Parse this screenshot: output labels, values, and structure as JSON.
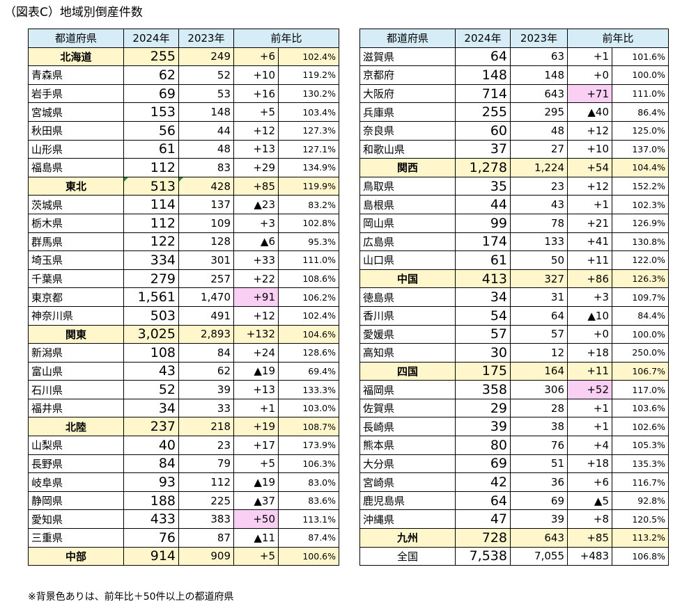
{
  "title": "（図表C）地域別倒産件数",
  "footnote": "※背景色ありは、前年比＋50件以上の都道府県",
  "headers": {
    "pref": "都道府県",
    "y2024": "2024年",
    "y2023": "2023年",
    "yoy": "前年比"
  },
  "left_rows": [
    {
      "name": "北海道",
      "y2024": "255",
      "y2023": "249",
      "diff": "+6",
      "pct": "102.4%",
      "kind": "sub"
    },
    {
      "name": "青森県",
      "y2024": "62",
      "y2023": "52",
      "diff": "+10",
      "pct": "119.2%"
    },
    {
      "name": "岩手県",
      "y2024": "69",
      "y2023": "53",
      "diff": "+16",
      "pct": "130.2%"
    },
    {
      "name": "宮城県",
      "y2024": "153",
      "y2023": "148",
      "diff": "+5",
      "pct": "103.4%"
    },
    {
      "name": "秋田県",
      "y2024": "56",
      "y2023": "44",
      "diff": "+12",
      "pct": "127.3%"
    },
    {
      "name": "山形県",
      "y2024": "61",
      "y2023": "48",
      "diff": "+13",
      "pct": "127.1%"
    },
    {
      "name": "福島県",
      "y2024": "112",
      "y2023": "83",
      "diff": "+29",
      "pct": "134.9%"
    },
    {
      "name": "東北",
      "y2024": "513",
      "y2023": "428",
      "diff": "+85",
      "pct": "119.9%",
      "kind": "sub",
      "mark": true
    },
    {
      "name": "茨城県",
      "y2024": "114",
      "y2023": "137",
      "diff": "▲23",
      "pct": "83.2%"
    },
    {
      "name": "栃木県",
      "y2024": "112",
      "y2023": "109",
      "diff": "+3",
      "pct": "102.8%"
    },
    {
      "name": "群馬県",
      "y2024": "122",
      "y2023": "128",
      "diff": "▲6",
      "pct": "95.3%"
    },
    {
      "name": "埼玉県",
      "y2024": "334",
      "y2023": "301",
      "diff": "+33",
      "pct": "111.0%"
    },
    {
      "name": "千葉県",
      "y2024": "279",
      "y2023": "257",
      "diff": "+22",
      "pct": "108.6%"
    },
    {
      "name": "東京都",
      "y2024": "1,561",
      "y2023": "1,470",
      "diff": "+91",
      "pct": "106.2%",
      "hl": true
    },
    {
      "name": "神奈川県",
      "y2024": "503",
      "y2023": "491",
      "diff": "+12",
      "pct": "102.4%"
    },
    {
      "name": "関東",
      "y2024": "3,025",
      "y2023": "2,893",
      "diff": "+132",
      "pct": "104.6%",
      "kind": "sub"
    },
    {
      "name": "新潟県",
      "y2024": "108",
      "y2023": "84",
      "diff": "+24",
      "pct": "128.6%"
    },
    {
      "name": "富山県",
      "y2024": "43",
      "y2023": "62",
      "diff": "▲19",
      "pct": "69.4%"
    },
    {
      "name": "石川県",
      "y2024": "52",
      "y2023": "39",
      "diff": "+13",
      "pct": "133.3%"
    },
    {
      "name": "福井県",
      "y2024": "34",
      "y2023": "33",
      "diff": "+1",
      "pct": "103.0%"
    },
    {
      "name": "北陸",
      "y2024": "237",
      "y2023": "218",
      "diff": "+19",
      "pct": "108.7%",
      "kind": "sub"
    },
    {
      "name": "山梨県",
      "y2024": "40",
      "y2023": "23",
      "diff": "+17",
      "pct": "173.9%"
    },
    {
      "name": "長野県",
      "y2024": "84",
      "y2023": "79",
      "diff": "+5",
      "pct": "106.3%"
    },
    {
      "name": "岐阜県",
      "y2024": "93",
      "y2023": "112",
      "diff": "▲19",
      "pct": "83.0%"
    },
    {
      "name": "静岡県",
      "y2024": "188",
      "y2023": "225",
      "diff": "▲37",
      "pct": "83.6%"
    },
    {
      "name": "愛知県",
      "y2024": "433",
      "y2023": "383",
      "diff": "+50",
      "pct": "113.1%",
      "hl": true
    },
    {
      "name": "三重県",
      "y2024": "76",
      "y2023": "87",
      "diff": "▲11",
      "pct": "87.4%"
    },
    {
      "name": "中部",
      "y2024": "914",
      "y2023": "909",
      "diff": "+5",
      "pct": "100.6%",
      "kind": "sub"
    }
  ],
  "right_rows": [
    {
      "name": "滋賀県",
      "y2024": "64",
      "y2023": "63",
      "diff": "+1",
      "pct": "101.6%"
    },
    {
      "name": "京都府",
      "y2024": "148",
      "y2023": "148",
      "diff": "+0",
      "pct": "100.0%"
    },
    {
      "name": "大阪府",
      "y2024": "714",
      "y2023": "643",
      "diff": "+71",
      "pct": "111.0%",
      "hl": true
    },
    {
      "name": "兵庫県",
      "y2024": "255",
      "y2023": "295",
      "diff": "▲40",
      "pct": "86.4%"
    },
    {
      "name": "奈良県",
      "y2024": "60",
      "y2023": "48",
      "diff": "+12",
      "pct": "125.0%"
    },
    {
      "name": "和歌山県",
      "y2024": "37",
      "y2023": "27",
      "diff": "+10",
      "pct": "137.0%"
    },
    {
      "name": "関西",
      "y2024": "1,278",
      "y2023": "1,224",
      "diff": "+54",
      "pct": "104.4%",
      "kind": "sub"
    },
    {
      "name": "鳥取県",
      "y2024": "35",
      "y2023": "23",
      "diff": "+12",
      "pct": "152.2%"
    },
    {
      "name": "島根県",
      "y2024": "44",
      "y2023": "43",
      "diff": "+1",
      "pct": "102.3%"
    },
    {
      "name": "岡山県",
      "y2024": "99",
      "y2023": "78",
      "diff": "+21",
      "pct": "126.9%"
    },
    {
      "name": "広島県",
      "y2024": "174",
      "y2023": "133",
      "diff": "+41",
      "pct": "130.8%"
    },
    {
      "name": "山口県",
      "y2024": "61",
      "y2023": "50",
      "diff": "+11",
      "pct": "122.0%"
    },
    {
      "name": "中国",
      "y2024": "413",
      "y2023": "327",
      "diff": "+86",
      "pct": "126.3%",
      "kind": "sub"
    },
    {
      "name": "徳島県",
      "y2024": "34",
      "y2023": "31",
      "diff": "+3",
      "pct": "109.7%"
    },
    {
      "name": "香川県",
      "y2024": "54",
      "y2023": "64",
      "diff": "▲10",
      "pct": "84.4%"
    },
    {
      "name": "愛媛県",
      "y2024": "57",
      "y2023": "57",
      "diff": "+0",
      "pct": "100.0%"
    },
    {
      "name": "高知県",
      "y2024": "30",
      "y2023": "12",
      "diff": "+18",
      "pct": "250.0%"
    },
    {
      "name": "四国",
      "y2024": "175",
      "y2023": "164",
      "diff": "+11",
      "pct": "106.7%",
      "kind": "sub"
    },
    {
      "name": "福岡県",
      "y2024": "358",
      "y2023": "306",
      "diff": "+52",
      "pct": "117.0%",
      "hl": true
    },
    {
      "name": "佐賀県",
      "y2024": "29",
      "y2023": "28",
      "diff": "+1",
      "pct": "103.6%"
    },
    {
      "name": "長崎県",
      "y2024": "39",
      "y2023": "38",
      "diff": "+1",
      "pct": "102.6%"
    },
    {
      "name": "熊本県",
      "y2024": "80",
      "y2023": "76",
      "diff": "+4",
      "pct": "105.3%"
    },
    {
      "name": "大分県",
      "y2024": "69",
      "y2023": "51",
      "diff": "+18",
      "pct": "135.3%"
    },
    {
      "name": "宮崎県",
      "y2024": "42",
      "y2023": "36",
      "diff": "+6",
      "pct": "116.7%"
    },
    {
      "name": "鹿児島県",
      "y2024": "64",
      "y2023": "69",
      "diff": "▲5",
      "pct": "92.8%"
    },
    {
      "name": "沖縄県",
      "y2024": "47",
      "y2023": "39",
      "diff": "+8",
      "pct": "120.5%"
    },
    {
      "name": "九州",
      "y2024": "728",
      "y2023": "643",
      "diff": "+85",
      "pct": "113.2%",
      "kind": "sub"
    },
    {
      "name": "全国",
      "y2024": "7,538",
      "y2023": "7,055",
      "diff": "+483",
      "pct": "106.8%",
      "kind": "total"
    }
  ]
}
